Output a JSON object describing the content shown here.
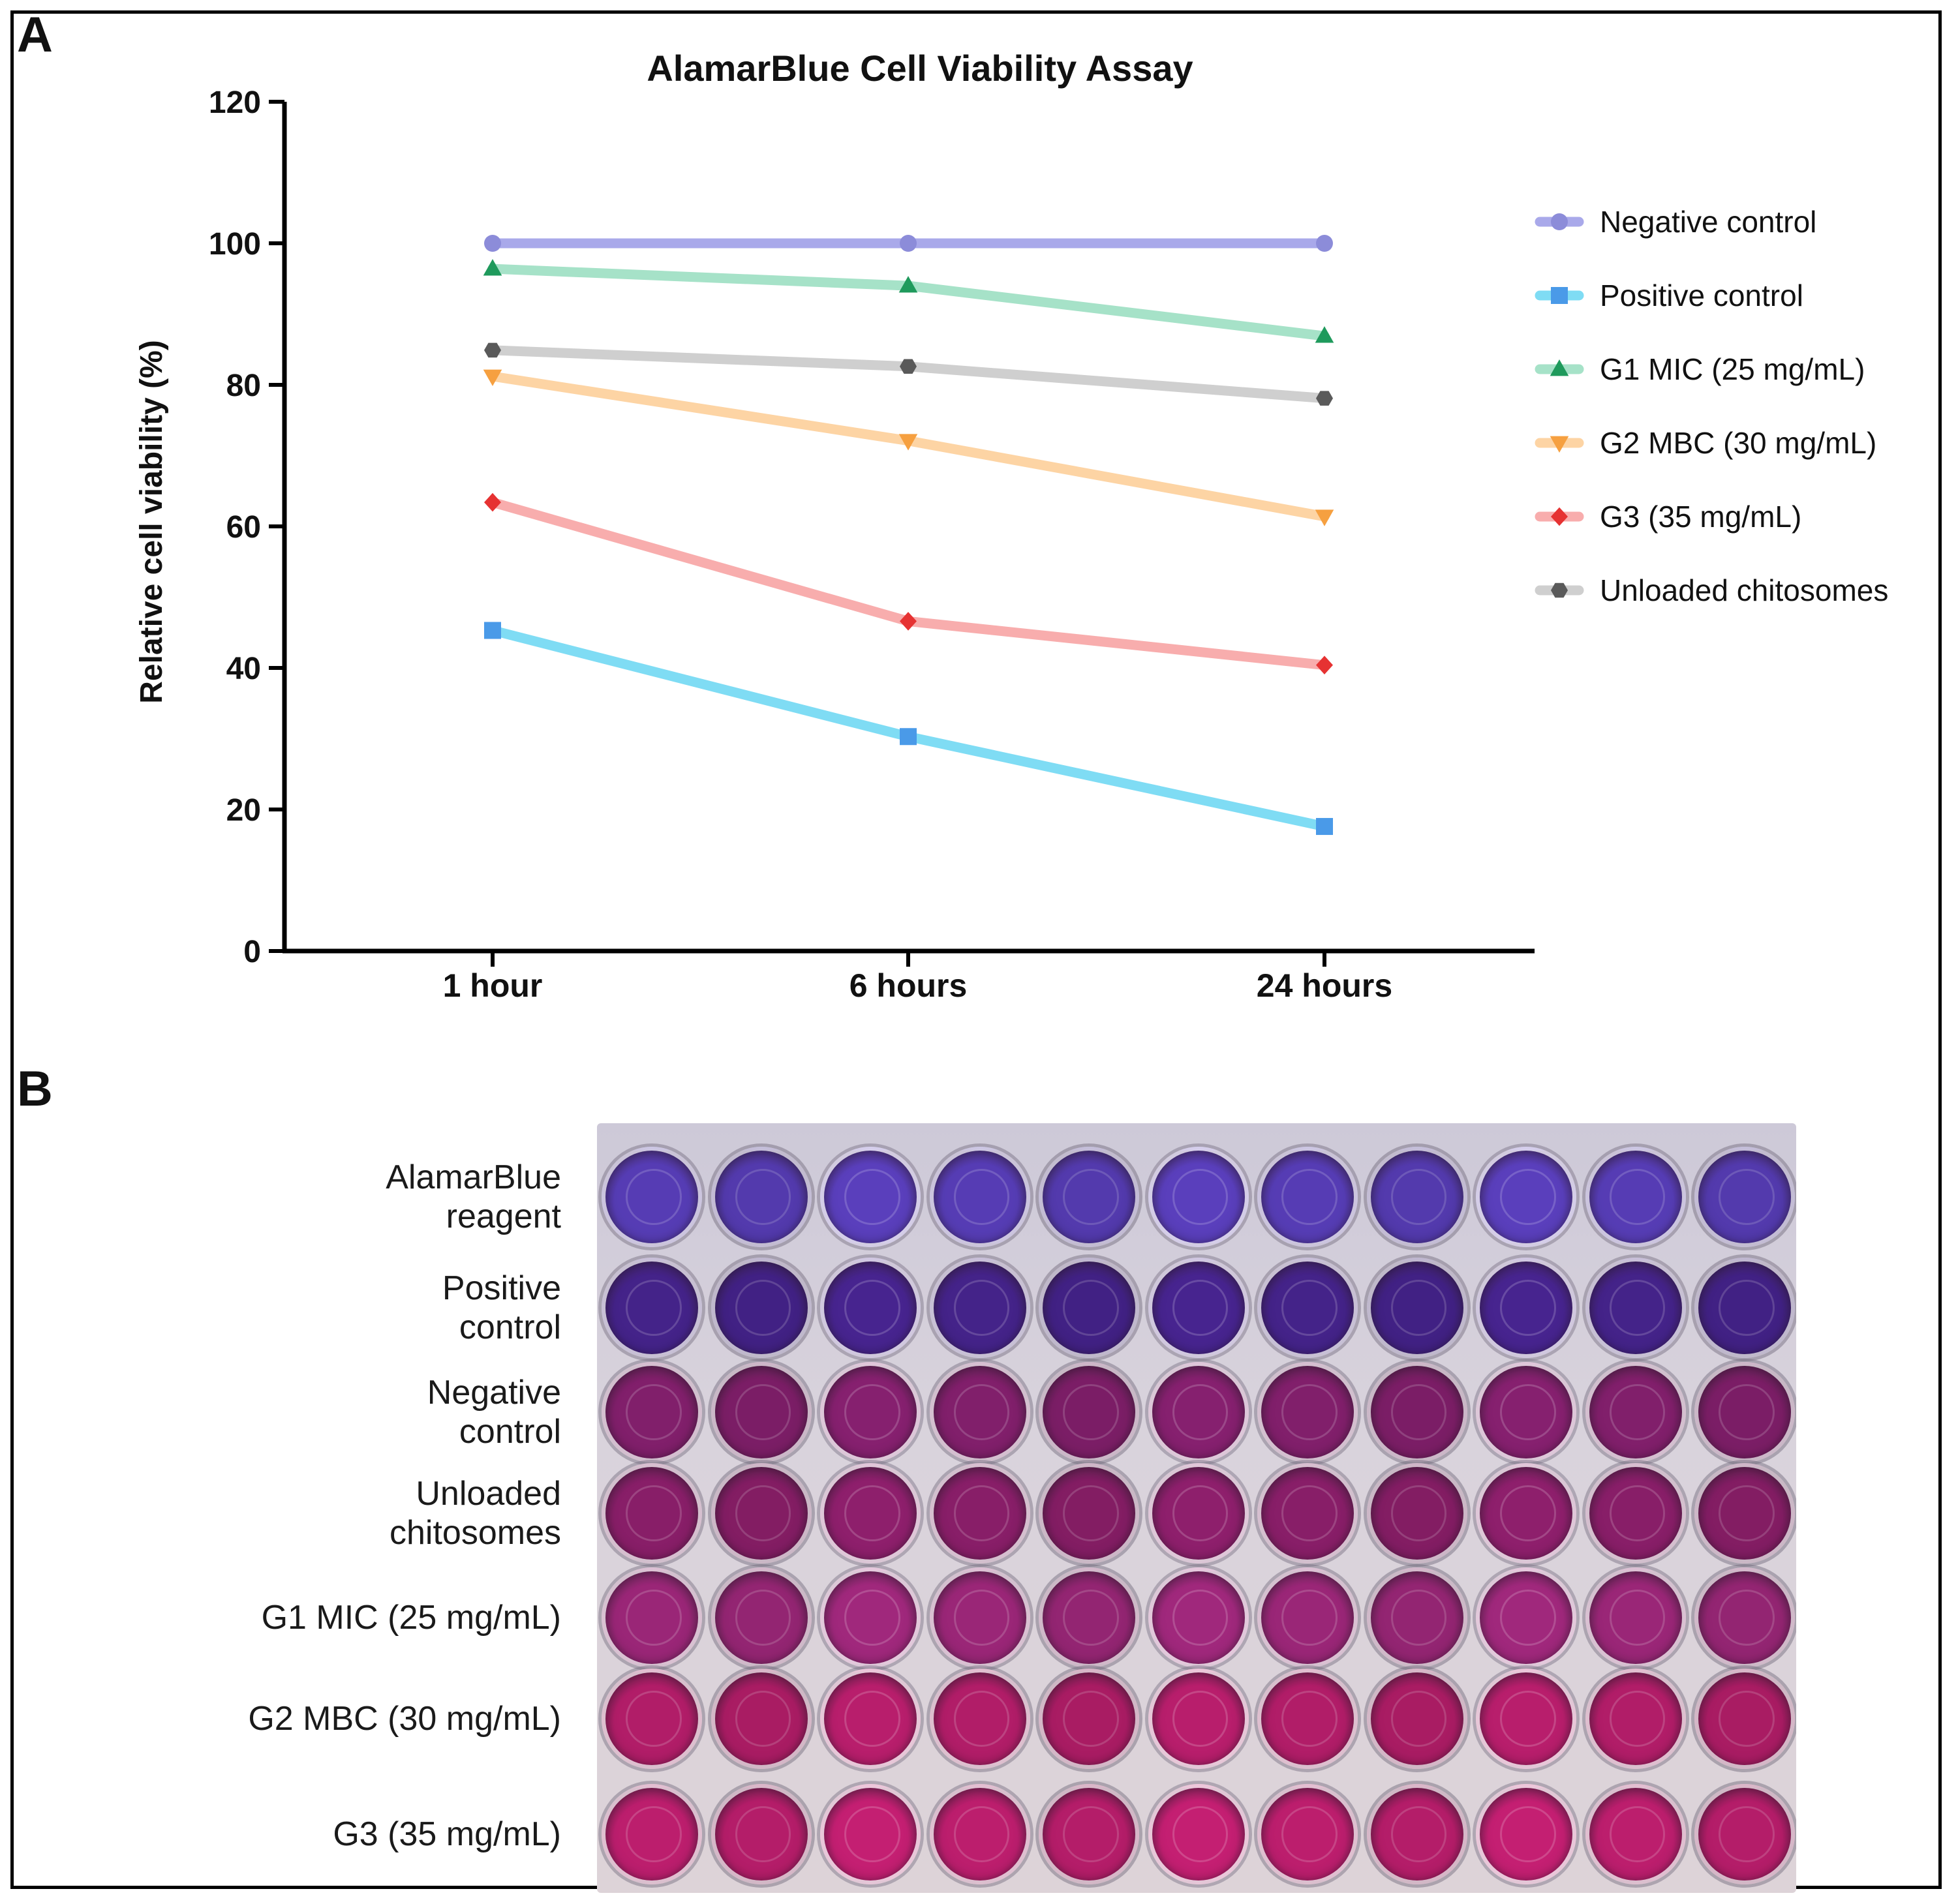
{
  "panels": {
    "a_label": "A",
    "b_label": "B"
  },
  "chart_data": {
    "type": "line",
    "title": "AlamarBlue Cell Viability Assay",
    "xlabel": "",
    "ylabel": "Relative cell viability (%)",
    "categories": [
      "1 hour",
      "6 hours",
      "24 hours"
    ],
    "ylim": [
      0,
      120
    ],
    "yticks": [
      0,
      20,
      40,
      60,
      80,
      100,
      120
    ],
    "legend_position": "right",
    "series": [
      {
        "name": "Negative control",
        "values": [
          100,
          100,
          100
        ],
        "color": "#a9a9ea",
        "marker": "circle",
        "marker_color": "#8c8cd9"
      },
      {
        "name": "Positive control",
        "values": [
          45.3,
          30.3,
          17.6
        ],
        "color": "#7fdcf4",
        "marker": "square",
        "marker_color": "#4a9ae8"
      },
      {
        "name": "G1 MIC (25 mg/mL)",
        "values": [
          96.4,
          94.0,
          86.9
        ],
        "color": "#a6e2c8",
        "marker": "triangle-up",
        "marker_color": "#1f9a5c"
      },
      {
        "name": "G2 MBC (30 mg/mL)",
        "values": [
          81.2,
          72.1,
          61.4
        ],
        "color": "#fdd4a4",
        "marker": "triangle-down",
        "marker_color": "#f6a040"
      },
      {
        "name": "G3 (35 mg/mL)",
        "values": [
          63.4,
          46.6,
          40.4
        ],
        "color": "#f8adad",
        "marker": "diamond",
        "marker_color": "#e63232"
      },
      {
        "name": "Unloaded chitosomes",
        "values": [
          84.9,
          82.6,
          78.1
        ],
        "color": "#cfcfcf",
        "marker": "hexagon",
        "marker_color": "#5a5a5a"
      }
    ]
  },
  "plate": {
    "rows": [
      {
        "label_lines": [
          "AlamarBlue",
          "reagent"
        ],
        "color": "#5a3fbc"
      },
      {
        "label_lines": [
          "Positive",
          "control"
        ],
        "color": "#47248f"
      },
      {
        "label_lines": [
          "Negative",
          "control"
        ],
        "color": "#86206f"
      },
      {
        "label_lines": [
          "Unloaded",
          "chitosomes"
        ],
        "color": "#8e1f6c"
      },
      {
        "label_lines": [
          "G1 MIC (25 mg/mL)"
        ],
        "color": "#a0287c"
      },
      {
        "label_lines": [
          "G2 MBC (30 mg/mL)"
        ],
        "color": "#b81e6c"
      },
      {
        "label_lines": [
          "G3 (35 mg/mL)"
        ],
        "color": "#c41f72"
      }
    ],
    "wells_per_row": 11
  }
}
